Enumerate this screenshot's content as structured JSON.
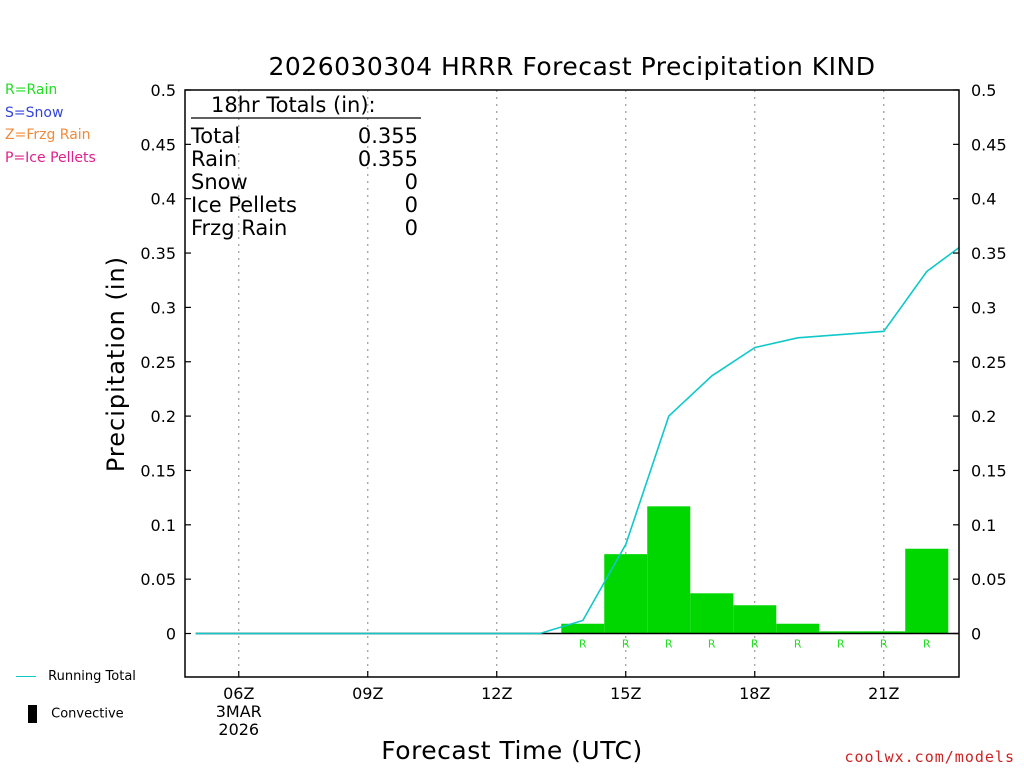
{
  "page": {
    "title": "2026030304 HRRR Forecast Precipitation KIND",
    "ylabel": "Precipitation (in)",
    "xlabel": "Forecast Time (UTC)",
    "credit": "coolwx.com/models",
    "precip_legend": [
      {
        "text": "R=Rain",
        "color": "#22dd22"
      },
      {
        "text": "S=Snow",
        "color": "#3344dd"
      },
      {
        "text": "Z=Frzg Rain",
        "color": "#f08a3c"
      },
      {
        "text": "P=Ice Pellets",
        "color": "#e0208c"
      }
    ],
    "keys": {
      "running_total": "Running Total",
      "convective": "Convective"
    },
    "totals": {
      "header": "18hr Totals (in):",
      "rows": [
        {
          "label": "Total",
          "value": "0.355"
        },
        {
          "label": "Rain",
          "value": "0.355"
        },
        {
          "label": "Snow",
          "value": "0"
        },
        {
          "label": "Ice Pellets",
          "value": "0"
        },
        {
          "label": "Frzg Rain",
          "value": "0"
        }
      ]
    }
  },
  "chart_data": {
    "type": "bar",
    "x_unit": "forecast hour (UTC), 2026-03-03",
    "xlim": [
      4.75,
      22.75
    ],
    "ylim": [
      -0.04,
      0.5
    ],
    "yticks": [
      0,
      0.05,
      0.1,
      0.15,
      0.2,
      0.25,
      0.3,
      0.35,
      0.4,
      0.45,
      0.5
    ],
    "ytick_labels": [
      "0",
      "0.05",
      "0.1",
      "0.15",
      "0.2",
      "0.25",
      "0.3",
      "0.35",
      "0.4",
      "0.45",
      "0.5"
    ],
    "xticks": [
      {
        "x": 6,
        "label": "06Z",
        "sub": [
          "3MAR",
          "2026"
        ]
      },
      {
        "x": 9,
        "label": "09Z"
      },
      {
        "x": 12,
        "label": "12Z"
      },
      {
        "x": 15,
        "label": "15Z"
      },
      {
        "x": 18,
        "label": "18Z"
      },
      {
        "x": 21,
        "label": "21Z"
      }
    ],
    "grid": "vertical dotted at x ticks",
    "series": [
      {
        "name": "Rain",
        "kind": "bar",
        "color": "#00d600",
        "x": [
          5,
          6,
          7,
          8,
          9,
          10,
          11,
          12,
          13,
          14,
          15,
          16,
          17,
          18,
          19,
          20,
          21,
          22
        ],
        "values": [
          0,
          0,
          0,
          0,
          0,
          0,
          0,
          0,
          0,
          0.009,
          0.073,
          0.117,
          0.037,
          0.026,
          0.009,
          0.002,
          0.002,
          0.078
        ]
      },
      {
        "name": "Running Total",
        "kind": "line",
        "color": "#10c8c8",
        "x": [
          5,
          6,
          7,
          8,
          9,
          10,
          11,
          12,
          13,
          14,
          15,
          16,
          17,
          18,
          19,
          20,
          21,
          22,
          22.75
        ],
        "values": [
          0,
          0,
          0,
          0,
          0,
          0,
          0,
          0,
          0,
          0.012,
          0.082,
          0.2,
          0.237,
          0.263,
          0.272,
          0.275,
          0.278,
          0.333,
          0.355
        ]
      }
    ],
    "ptype_marks": {
      "x": [
        14,
        15,
        16,
        17,
        18,
        19,
        20,
        21,
        22
      ],
      "labels": [
        "R",
        "R",
        "R",
        "R",
        "R",
        "R",
        "R",
        "R",
        "R"
      ],
      "color": "#22dd22"
    }
  }
}
